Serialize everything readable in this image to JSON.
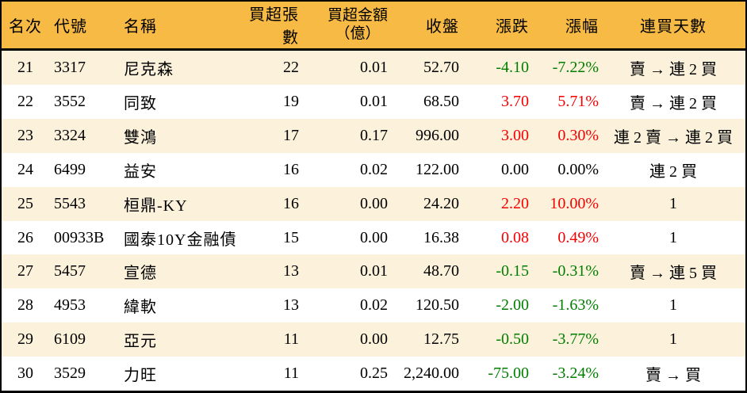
{
  "table": {
    "columns": [
      {
        "key": "rank",
        "label": "名次"
      },
      {
        "key": "code",
        "label": "代號"
      },
      {
        "key": "name",
        "label": "名稱"
      },
      {
        "key": "lots",
        "label": "買超張數"
      },
      {
        "key": "amount",
        "label": "買超金額",
        "label2": "（億）"
      },
      {
        "key": "close",
        "label": "收盤"
      },
      {
        "key": "change",
        "label": "漲跌"
      },
      {
        "key": "pct",
        "label": "漲幅"
      },
      {
        "key": "streak",
        "label": "連買天數"
      }
    ],
    "rows": [
      {
        "rank": "21",
        "code": "3317",
        "name": "尼克森",
        "lots": "22",
        "amount": "0.01",
        "close": "52.70",
        "change": "-4.10",
        "pct": "-7.22%",
        "streak": "賣 → 連 2 買",
        "trend": "down"
      },
      {
        "rank": "22",
        "code": "3552",
        "name": "同致",
        "lots": "19",
        "amount": "0.01",
        "close": "68.50",
        "change": "3.70",
        "pct": "5.71%",
        "streak": "賣 → 連 2 買",
        "trend": "up"
      },
      {
        "rank": "23",
        "code": "3324",
        "name": "雙鴻",
        "lots": "17",
        "amount": "0.17",
        "close": "996.00",
        "change": "3.00",
        "pct": "0.30%",
        "streak": "連 2 賣 → 連 2 買",
        "trend": "up"
      },
      {
        "rank": "24",
        "code": "6499",
        "name": "益安",
        "lots": "16",
        "amount": "0.02",
        "close": "122.00",
        "change": "0.00",
        "pct": "0.00%",
        "streak": "連 2 買",
        "trend": "flat"
      },
      {
        "rank": "25",
        "code": "5543",
        "name": "桓鼎-KY",
        "lots": "16",
        "amount": "0.00",
        "close": "24.20",
        "change": "2.20",
        "pct": "10.00%",
        "streak": "1",
        "trend": "up"
      },
      {
        "rank": "26",
        "code": "00933B",
        "name": "國泰10Y金融債",
        "lots": "15",
        "amount": "0.00",
        "close": "16.38",
        "change": "0.08",
        "pct": "0.49%",
        "streak": "1",
        "trend": "up"
      },
      {
        "rank": "27",
        "code": "5457",
        "name": "宣德",
        "lots": "13",
        "amount": "0.01",
        "close": "48.70",
        "change": "-0.15",
        "pct": "-0.31%",
        "streak": "賣 → 連 5 買",
        "trend": "down"
      },
      {
        "rank": "28",
        "code": "4953",
        "name": "緯軟",
        "lots": "13",
        "amount": "0.02",
        "close": "120.50",
        "change": "-2.00",
        "pct": "-1.63%",
        "streak": "1",
        "trend": "down"
      },
      {
        "rank": "29",
        "code": "6109",
        "name": "亞元",
        "lots": "11",
        "amount": "0.00",
        "close": "12.75",
        "change": "-0.50",
        "pct": "-3.77%",
        "streak": "1",
        "trend": "down"
      },
      {
        "rank": "30",
        "code": "3529",
        "name": "力旺",
        "lots": "11",
        "amount": "0.25",
        "close": "2,240.00",
        "change": "-75.00",
        "pct": "-3.24%",
        "streak": "賣 → 買",
        "trend": "down"
      }
    ]
  },
  "colors": {
    "header_bg": "#F6BA45",
    "alt_row_bg": "#FCF2DC",
    "up_red": "#F40000",
    "down_green": "#007E00",
    "border_black": "#000000"
  }
}
